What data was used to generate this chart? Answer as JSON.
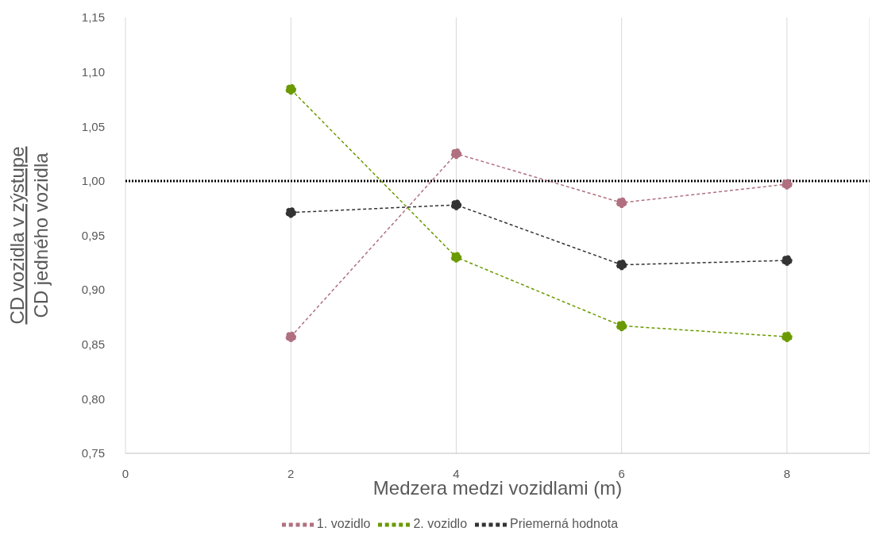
{
  "chart_data": {
    "type": "line",
    "xlabel": "Medzera medzi vozidlami (m)",
    "ylabel": "CD vozidla v zýstupe\nCD jedného vozidla",
    "x": [
      2,
      4,
      6,
      8
    ],
    "series": [
      {
        "name": "1. vozidlo",
        "color": "#b07080",
        "values": [
          0.857,
          1.025,
          0.98,
          0.997
        ]
      },
      {
        "name": "2. vozidlo",
        "color": "#6a9a00",
        "values": [
          1.084,
          0.93,
          0.867,
          0.857
        ]
      },
      {
        "name": "Priemerná hodnota",
        "color": "#333333",
        "values": [
          0.971,
          0.978,
          0.923,
          0.927
        ]
      }
    ],
    "xlim": [
      0,
      9
    ],
    "xticks": [
      0,
      2,
      4,
      6,
      8
    ],
    "ylim": [
      0.75,
      1.15
    ],
    "yticks": [
      {
        "value": 0.75,
        "label": "0,75"
      },
      {
        "value": 0.8,
        "label": "0,80"
      },
      {
        "value": 0.85,
        "label": "0,85"
      },
      {
        "value": 0.9,
        "label": "0,90"
      },
      {
        "value": 0.95,
        "label": "0,95"
      },
      {
        "value": 1.0,
        "label": "1,00"
      },
      {
        "value": 1.05,
        "label": "1,05"
      },
      {
        "value": 1.1,
        "label": "1,10"
      },
      {
        "value": 1.15,
        "label": "1,15"
      }
    ],
    "ref_lines": [
      {
        "axis": "y",
        "value": 1.0,
        "color": "#000000",
        "line_style": "dotted"
      }
    ],
    "grid": "x",
    "legend": "bottom",
    "marker": "circle",
    "line_style": "dashed"
  }
}
